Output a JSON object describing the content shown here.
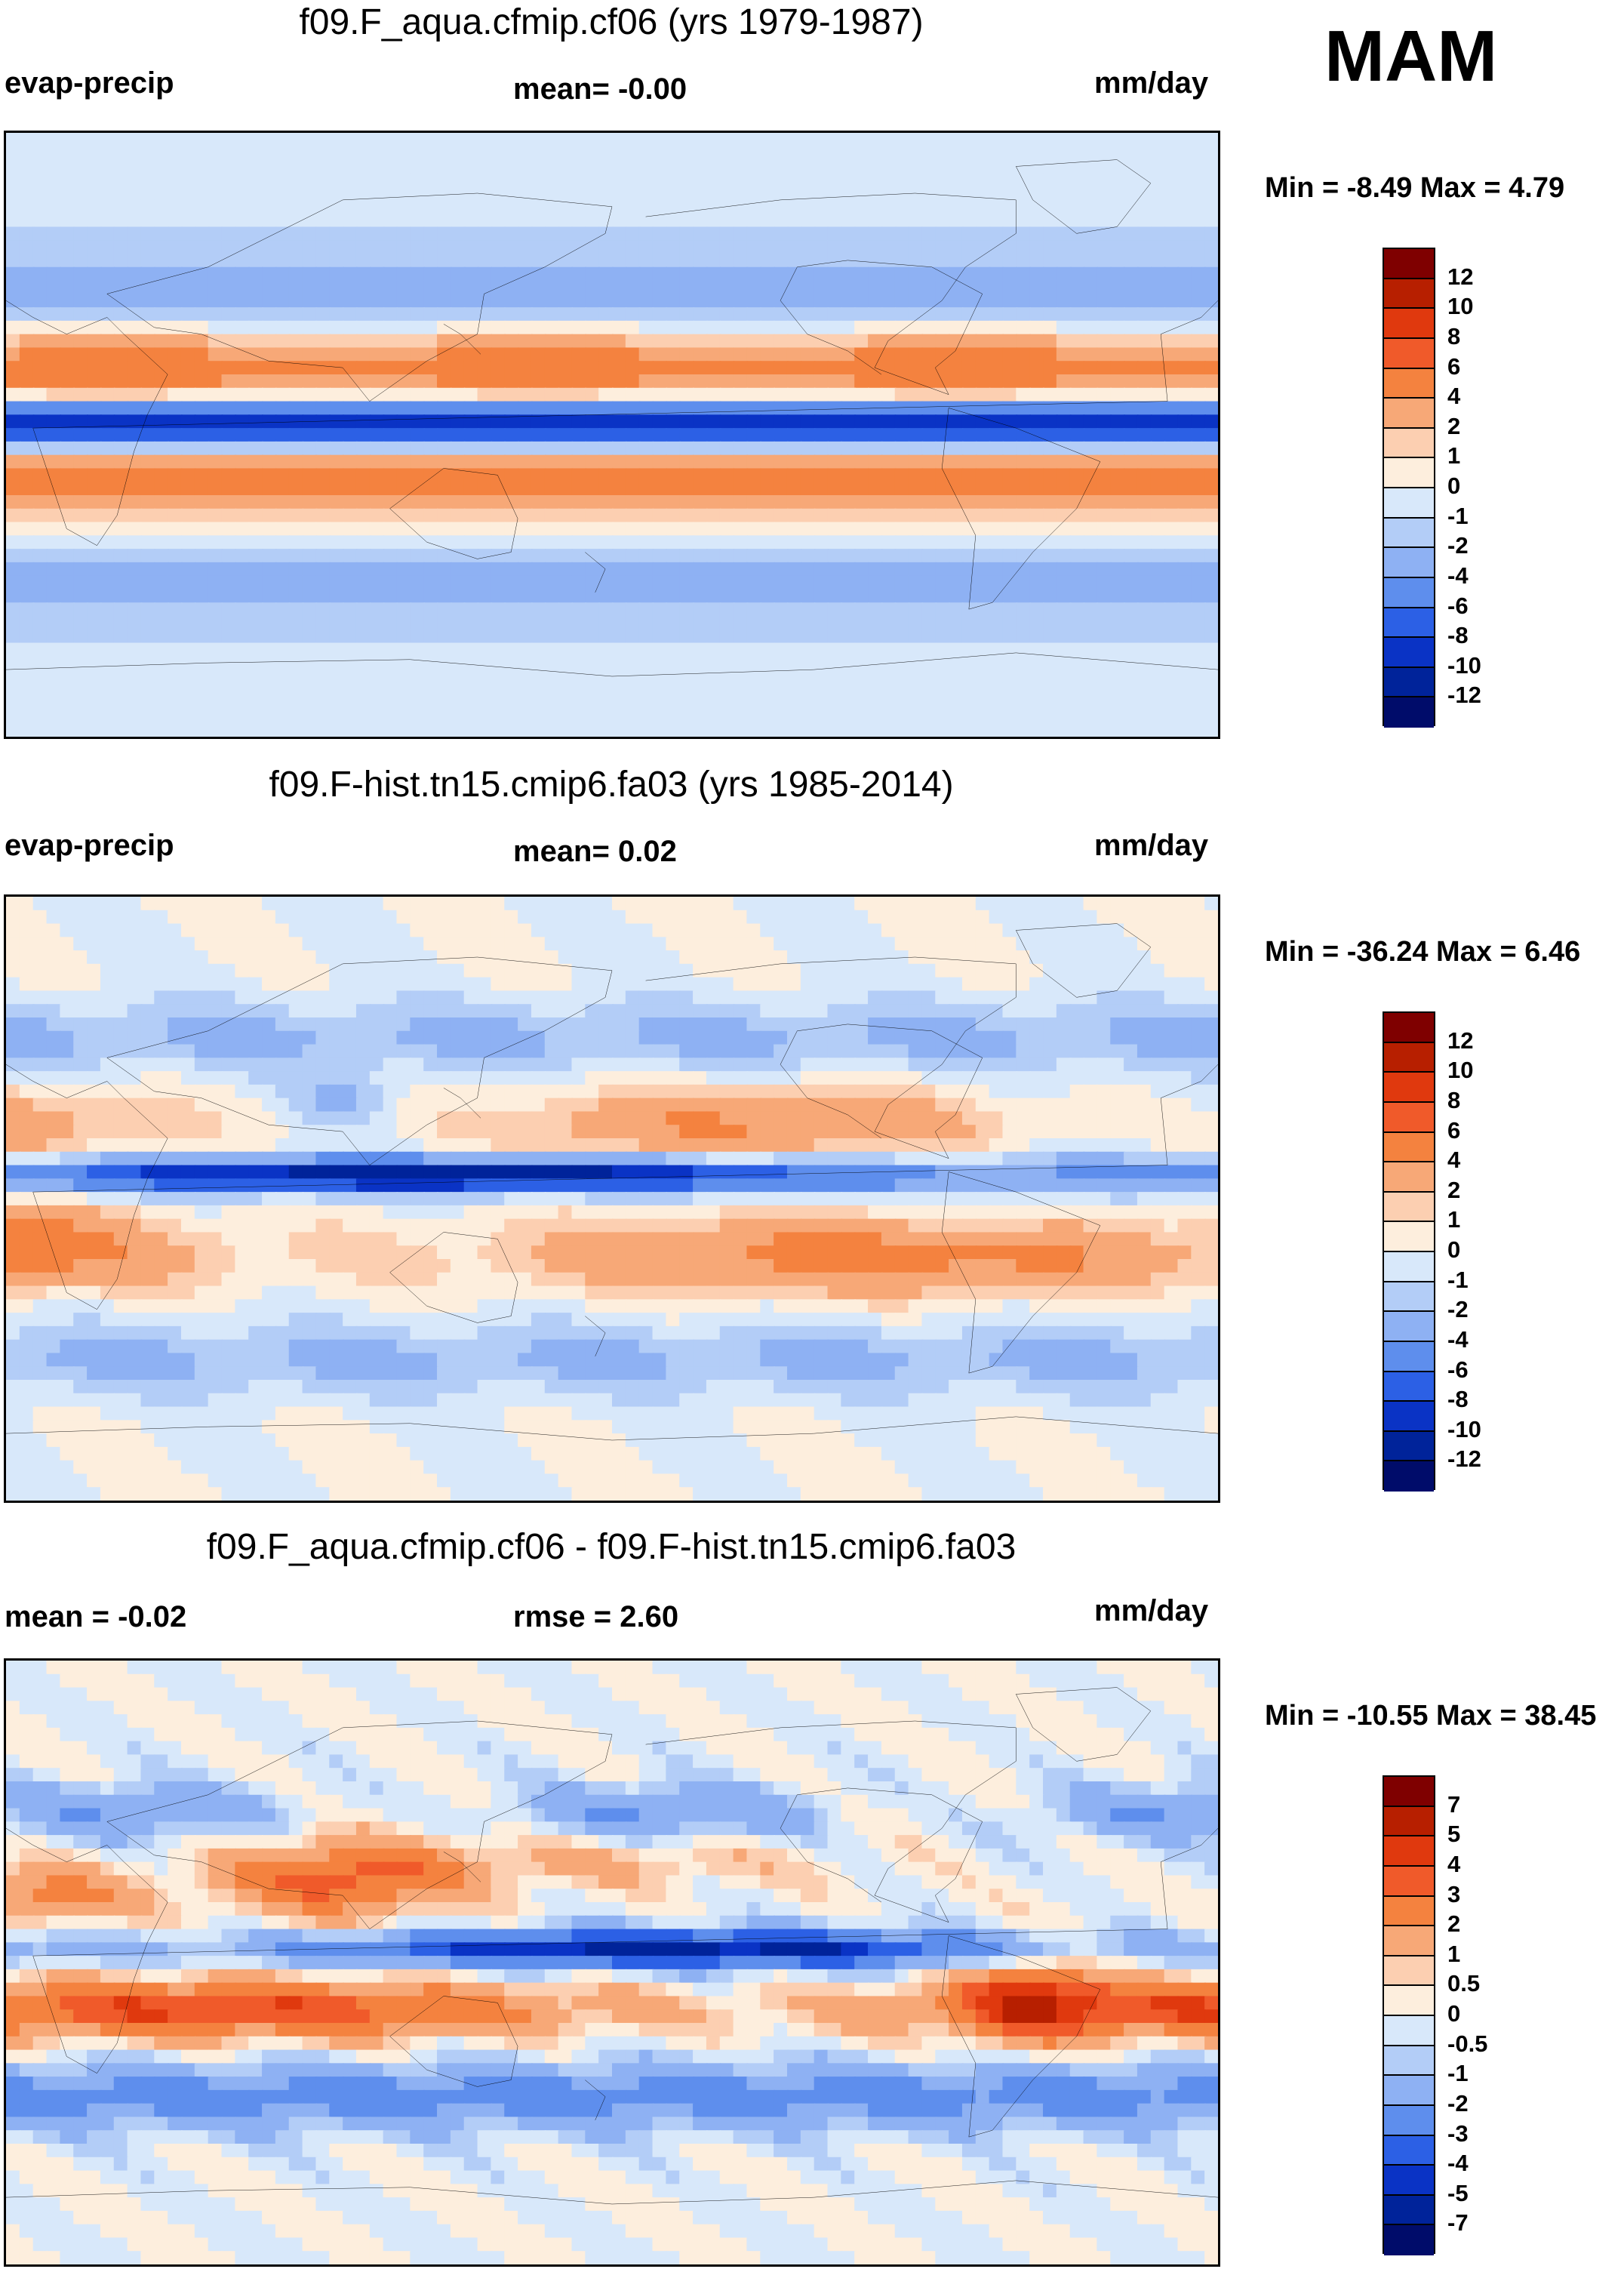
{
  "season": "MAM",
  "panels": [
    {
      "title": "f09.F_aqua.cfmip.cf06 (yrs 1979-1987)",
      "left_label": "evap-precip",
      "center_label": "mean=  -0.00",
      "units": "mm/day",
      "minmax": "Min =  -8.49 Max =   4.79",
      "colorbar": {
        "labels": [
          "12",
          "10",
          "8",
          "6",
          "4",
          "2",
          "1",
          "0",
          "-1",
          "-2",
          "-4",
          "-6",
          "-8",
          "-10",
          "-12"
        ],
        "colors": [
          "#7f0000",
          "#b71f00",
          "#e0390e",
          "#f05a2a",
          "#f4823f",
          "#f7a877",
          "#fccfb1",
          "#fdeedd",
          "#d8e8fa",
          "#b3cdf7",
          "#8eb1f3",
          "#5e8eed",
          "#2c60e5",
          "#0a33c5",
          "#00239a",
          "#000c6a"
        ]
      },
      "field_kind": "aqua"
    },
    {
      "title": "f09.F-hist.tn15.cmip6.fa03 (yrs 1985-2014)",
      "left_label": "evap-precip",
      "center_label": "mean=   0.02",
      "units": "mm/day",
      "minmax": "Min = -36.24 Max =   6.46",
      "colorbar": {
        "labels": [
          "12",
          "10",
          "8",
          "6",
          "4",
          "2",
          "1",
          "0",
          "-1",
          "-2",
          "-4",
          "-6",
          "-8",
          "-10",
          "-12"
        ],
        "colors": [
          "#7f0000",
          "#b71f00",
          "#e0390e",
          "#f05a2a",
          "#f4823f",
          "#f7a877",
          "#fccfb1",
          "#fdeedd",
          "#d8e8fa",
          "#b3cdf7",
          "#8eb1f3",
          "#5e8eed",
          "#2c60e5",
          "#0a33c5",
          "#00239a",
          "#000c6a"
        ]
      },
      "field_kind": "hist"
    },
    {
      "title": "f09.F_aqua.cfmip.cf06 - f09.F-hist.tn15.cmip6.fa03",
      "left_label": "mean =  -0.02",
      "center_label": "rmse =    2.60",
      "units": "mm/day",
      "minmax": "Min = -10.55 Max =  38.45",
      "colorbar": {
        "labels": [
          "7",
          "5",
          "4",
          "3",
          "2",
          "1",
          "0.5",
          "0",
          "-0.5",
          "-1",
          "-2",
          "-3",
          "-4",
          "-5",
          "-7"
        ],
        "colors": [
          "#7f0000",
          "#b71f00",
          "#e0390e",
          "#f05a2a",
          "#f4823f",
          "#f7a877",
          "#fccfb1",
          "#fdeedd",
          "#d8e8fa",
          "#b3cdf7",
          "#8eb1f3",
          "#5e8eed",
          "#2c60e5",
          "#0a33c5",
          "#00239a",
          "#000c6a"
        ]
      },
      "field_kind": "diff"
    }
  ],
  "chart_data": [
    {
      "type": "heatmap",
      "title": "f09.F_aqua.cfmip.cf06 (yrs 1979-1987)",
      "variable": "evap-precip",
      "units": "mm/day",
      "mean": -0.0,
      "min": -8.49,
      "max": 4.79,
      "levels": [
        -12,
        -10,
        -8,
        -6,
        -4,
        -2,
        -1,
        0,
        1,
        2,
        4,
        6,
        8,
        10,
        12
      ]
    },
    {
      "type": "heatmap",
      "title": "f09.F-hist.tn15.cmip6.fa03 (yrs 1985-2014)",
      "variable": "evap-precip",
      "units": "mm/day",
      "mean": 0.02,
      "min": -36.24,
      "max": 6.46,
      "levels": [
        -12,
        -10,
        -8,
        -6,
        -4,
        -2,
        -1,
        0,
        1,
        2,
        4,
        6,
        8,
        10,
        12
      ]
    },
    {
      "type": "heatmap",
      "title": "f09.F_aqua.cfmip.cf06 - f09.F-hist.tn15.cmip6.fa03",
      "units": "mm/day",
      "mean": -0.02,
      "rmse": 2.6,
      "min": -10.55,
      "max": 38.45,
      "levels": [
        -7,
        -5,
        -4,
        -3,
        -2,
        -1,
        -0.5,
        0,
        0.5,
        1,
        2,
        3,
        4,
        5,
        7
      ]
    }
  ]
}
